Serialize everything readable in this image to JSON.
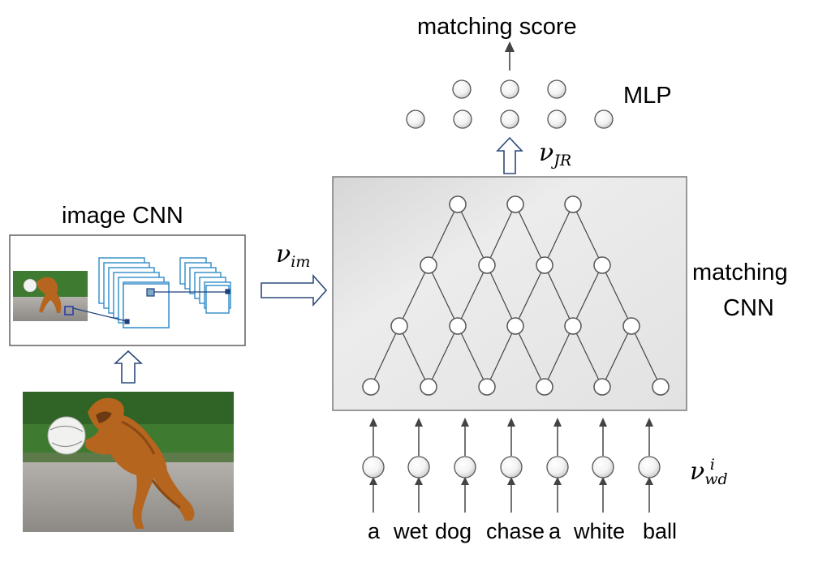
{
  "labels": {
    "matching_score": "matching score",
    "mlp": "MLP",
    "image_cnn": "image CNN",
    "matching_cnn_line1": "matching",
    "matching_cnn_line2": "CNN",
    "nu": "ν",
    "nu_jr_sub": "JR",
    "nu_im_sub": "im",
    "nu_wd_sub": "wd",
    "nu_wd_sup": "i"
  },
  "sentence": [
    "a",
    "wet",
    "dog",
    "chase",
    "a",
    "white",
    "ball"
  ],
  "colors": {
    "cnn_box_fill": "#e6e6e6",
    "cnn_box_edge": "#7a7a7a",
    "feature_map_blue": "#2f8bc9",
    "arrow_outline": "#2c4a7a",
    "grass": "#3f7a31",
    "road": "#9a9794",
    "dog": "#b5651d"
  },
  "icons": {
    "photo": "dog-photo-image",
    "thumbnail": "dog-photo-thumbnail"
  }
}
